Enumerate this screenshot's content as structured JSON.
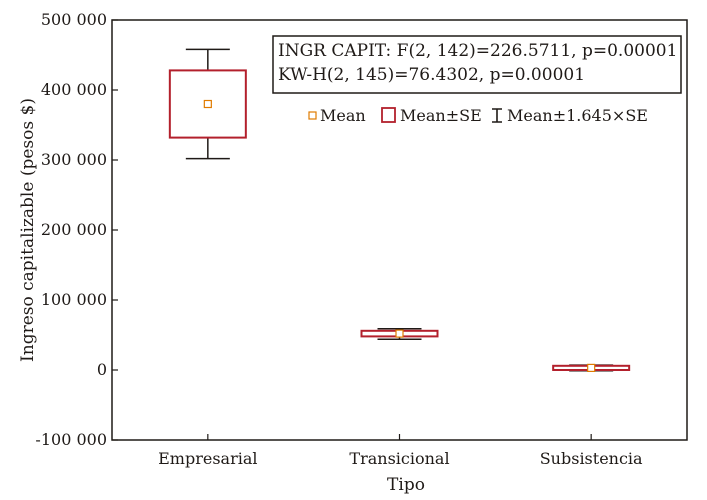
{
  "chart_data": {
    "type": "box",
    "title": "",
    "xlabel": "Tipo",
    "ylabel": "Ingreso capitalizable (pesos $)",
    "ylim": [
      -100000,
      500000
    ],
    "yticks": [
      -100000,
      0,
      100000,
      200000,
      300000,
      400000,
      500000
    ],
    "ytick_labels": [
      "-100 000",
      "0",
      "100 000",
      "200 000",
      "300 000",
      "400 000",
      "500 000"
    ],
    "categories": [
      "Empresarial",
      "Transicional",
      "Subsistencia"
    ],
    "series": [
      {
        "category": "Empresarial",
        "mean": 380000,
        "mean_minus_se": 332000,
        "mean_plus_se": 428000,
        "whisker_low": 302000,
        "whisker_high": 458000
      },
      {
        "category": "Transicional",
        "mean": 52000,
        "mean_minus_se": 48000,
        "mean_plus_se": 56000,
        "whisker_low": 44000,
        "whisker_high": 59000
      },
      {
        "category": "Subsistencia",
        "mean": 3000,
        "mean_minus_se": 0,
        "mean_plus_se": 6000,
        "whisker_low": -1000,
        "whisker_high": 7000
      }
    ],
    "stats_text": [
      "INGR CAPIT: F(2, 142)=226.5711, p=0.00001",
      "KW-H(2, 145)=76.4302, p=0.00001"
    ],
    "legend": {
      "placement": "top-right",
      "items": [
        {
          "label": "Mean",
          "symbol": "mean-square"
        },
        {
          "label": "Mean±SE",
          "symbol": "se-box"
        },
        {
          "label": "Mean±1.645×SE",
          "symbol": "whisker"
        }
      ]
    },
    "grid": false,
    "colors": {
      "axis": "#1f1a17",
      "se_box": "#b3202c",
      "mean_marker": "#e07b00",
      "whisker": "#1f1a17"
    }
  }
}
